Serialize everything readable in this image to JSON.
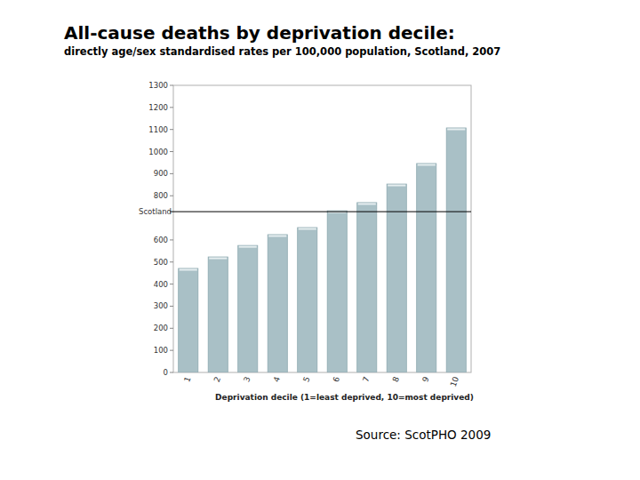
{
  "chart_data": {
    "type": "bar",
    "title": "All-cause deaths by deprivation decile:",
    "subtitle": "directly age/sex standardised rates per 100,000 population, Scotland, 2007",
    "x_label": "Deprivation decile (1=least deprived, 10=most deprived)",
    "source": "Source: ScotPHO 2009",
    "categories": [
      "1",
      "2",
      "3",
      "4",
      "5",
      "6",
      "7",
      "8",
      "9",
      "10"
    ],
    "values": [
      471,
      523,
      575,
      624,
      656,
      732,
      769,
      853,
      946,
      1107
    ],
    "color": "#a9c0c6",
    "ylim": [
      0,
      1300
    ],
    "yticks": [
      0,
      100,
      200,
      300,
      400,
      500,
      600,
      800,
      900,
      1000,
      1100,
      1200,
      1300
    ],
    "grid": false,
    "reference_line": {
      "label": "Scotland",
      "value": 728
    }
  }
}
